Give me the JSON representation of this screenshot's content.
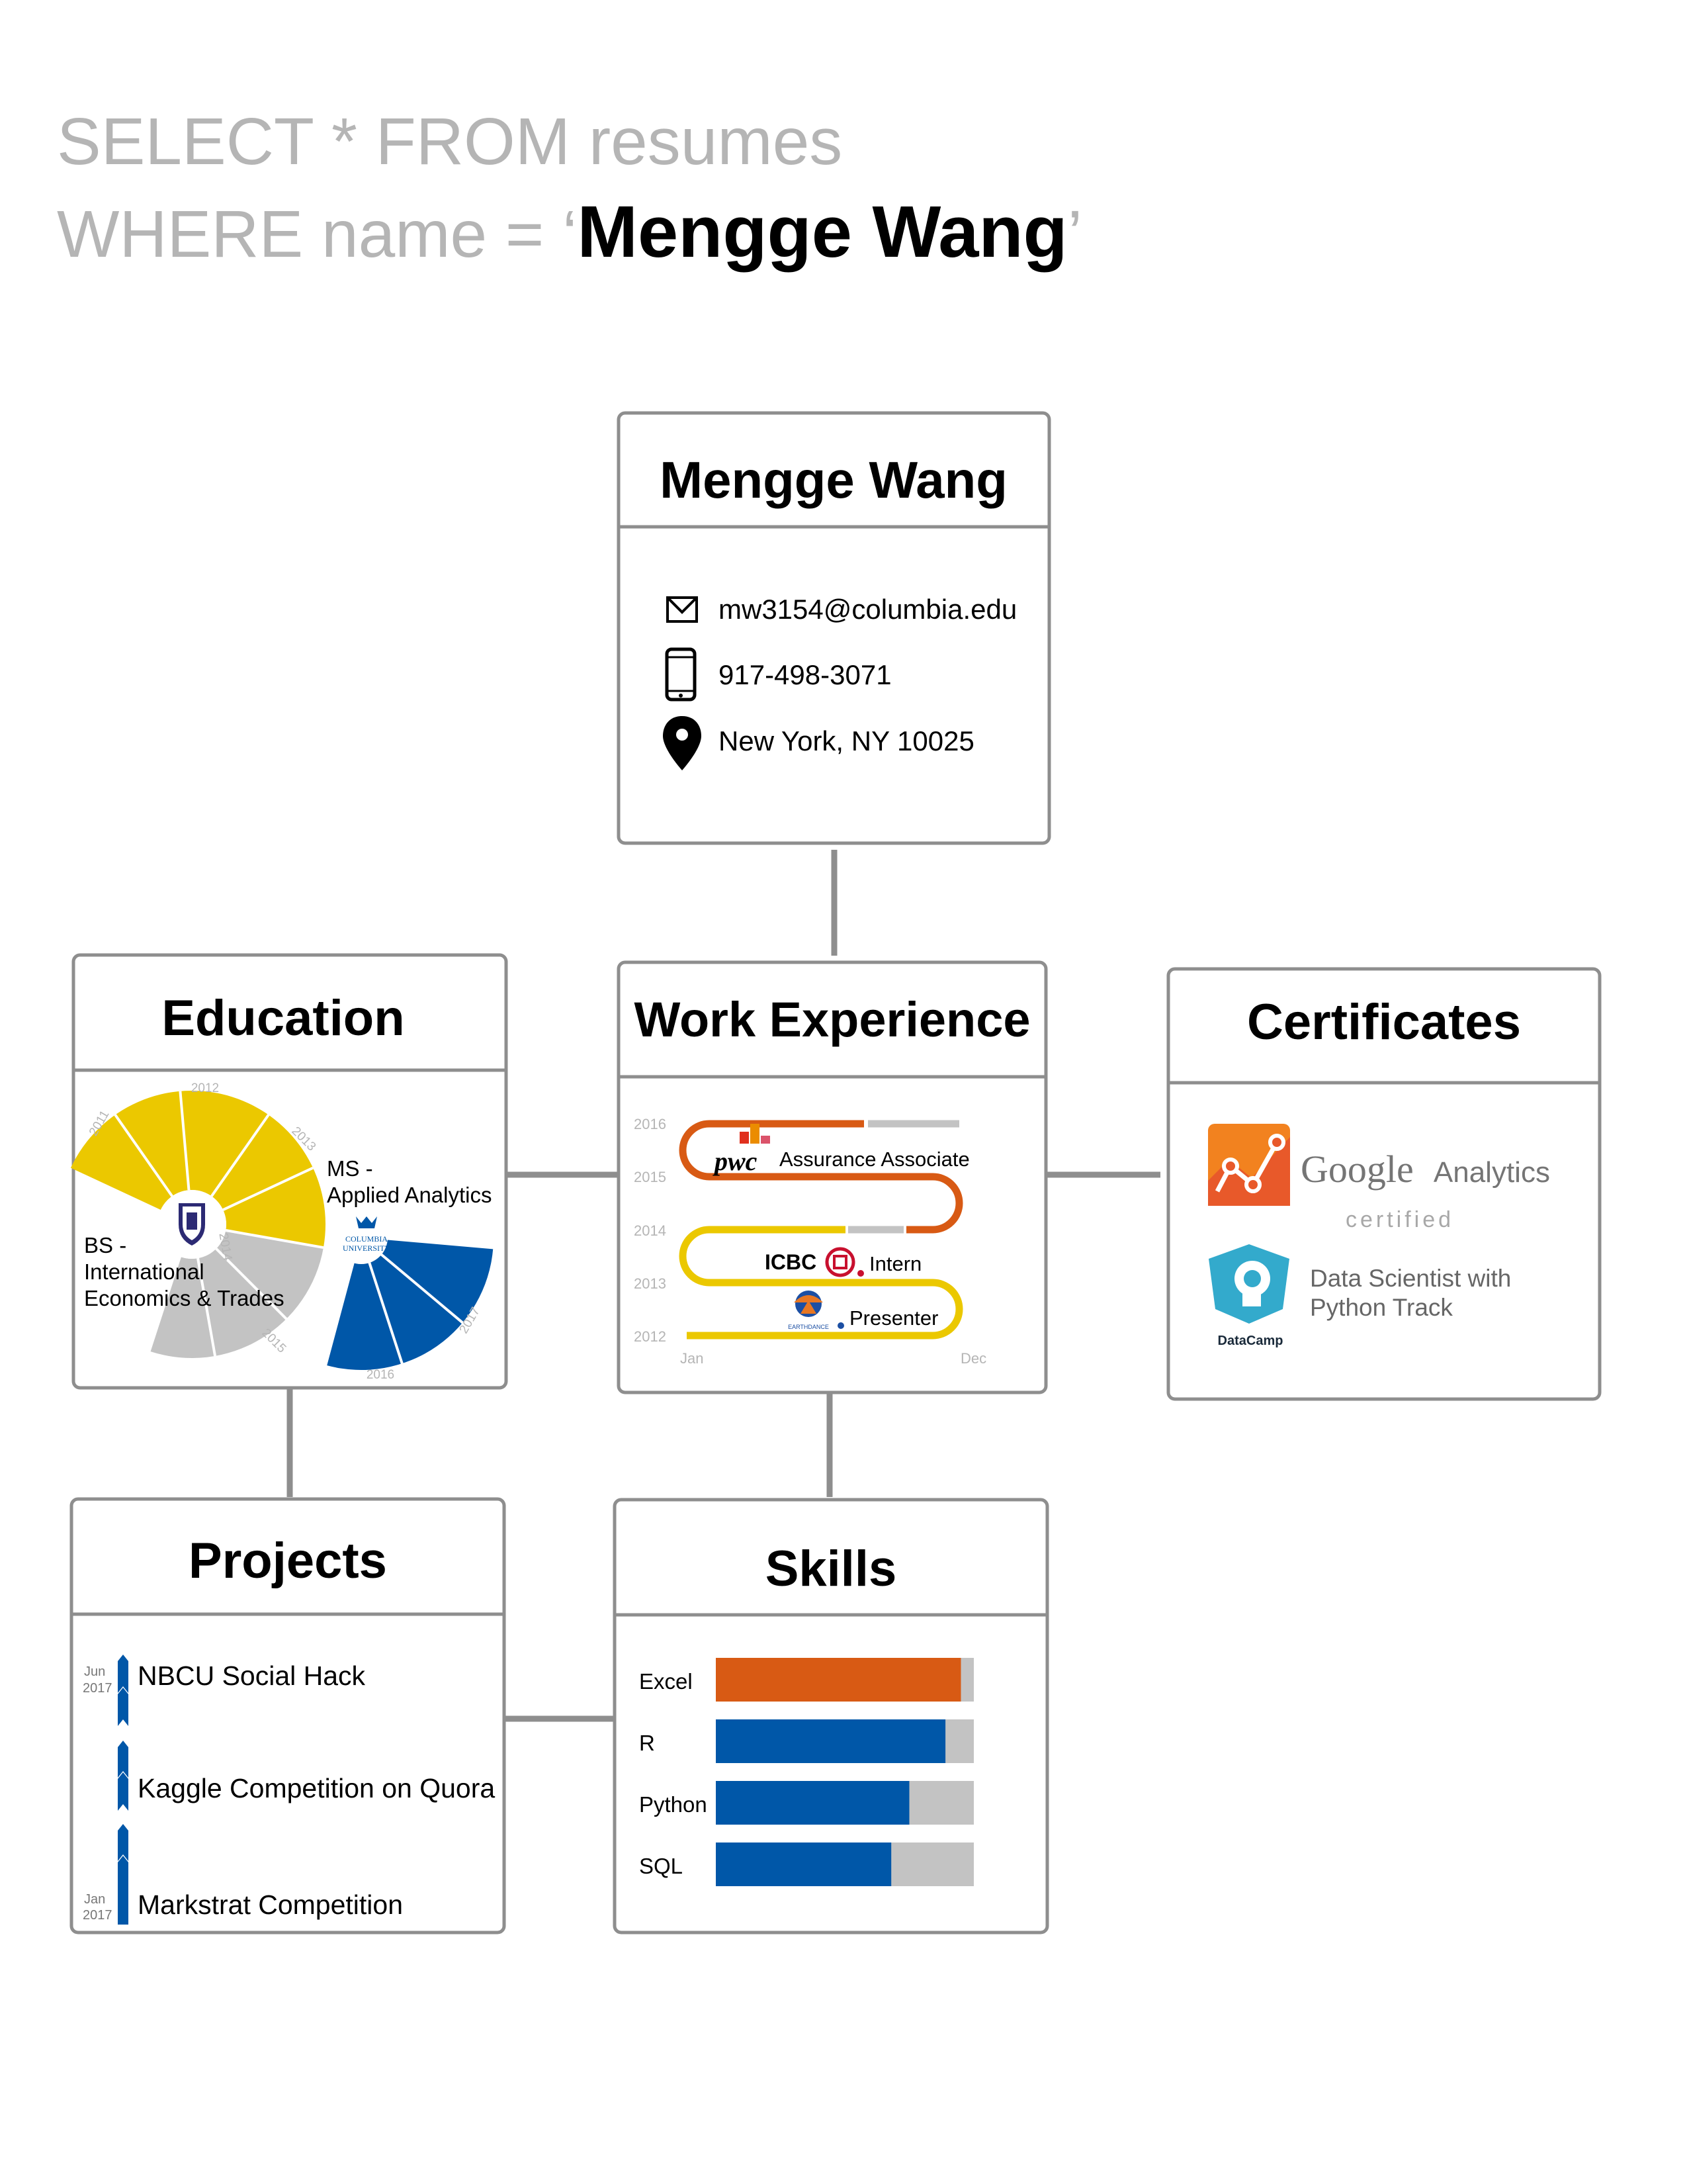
{
  "query": {
    "line1": "SELECT * FROM resumes",
    "line2_prefix": "WHERE name = ‘",
    "line2_name": "Mengge Wang",
    "line2_suffix": "’"
  },
  "contact": {
    "title": "Mengge Wang",
    "email": "mw3154@columbia.edu",
    "phone": "917-498-3071",
    "location": "New York, NY 10025",
    "icons": [
      "mail-icon",
      "phone-icon",
      "location-pin-icon"
    ]
  },
  "education": {
    "title": "Education",
    "bs_label": [
      "BS -",
      "International",
      "Economics & Trades"
    ],
    "ms_label": [
      "MS -",
      "Applied Analytics"
    ],
    "columbia_logo": [
      "COLUMBIA",
      "UNIVERSITY"
    ],
    "years": [
      "2011",
      "2012",
      "2013",
      "2014",
      "2015",
      "2016",
      "2017"
    ],
    "colors": {
      "bs": "#ebc800",
      "gap": "#c3c3c3",
      "ms": "#0057a8"
    }
  },
  "work": {
    "title": "Work Experience",
    "years": [
      "2016",
      "2015",
      "2014",
      "2013",
      "2012"
    ],
    "months": [
      "Jan",
      "Dec"
    ],
    "pwc_logo": "pwc",
    "pwc_role": "Assurance Associate",
    "icbc_logo": "ICBC",
    "icbc_role": "Intern",
    "earthdance_logo": "EARTHDANCE",
    "earthdance_role": "Presenter",
    "colors": {
      "pwc": "#d85a14",
      "icbc": "#ebc800",
      "gap": "#c3c3c3"
    }
  },
  "certificates": {
    "title": "Certificates",
    "google_word": "Google",
    "analytics_word": "Analytics",
    "certified": "certified",
    "datacamp_text": [
      "Data Scientist with",
      "Python Track"
    ],
    "datacamp_logo": "DataCamp",
    "icons": [
      "google-analytics-icon",
      "datacamp-icon"
    ]
  },
  "projects": {
    "title": "Projects",
    "items": [
      "NBCU Social Hack",
      "Kaggle Competition on Quora",
      "Markstrat Competition"
    ],
    "date_top": [
      "Jun",
      "2017"
    ],
    "date_bottom": [
      "Jan",
      "2017"
    ]
  },
  "chart_data": {
    "type": "bar",
    "categories": [
      "Excel",
      "R",
      "Python",
      "SQL"
    ],
    "values": [
      0.95,
      0.89,
      0.75,
      0.68
    ],
    "ylim": [
      0,
      1
    ],
    "colors": [
      "#d85a14",
      "#0057a8",
      "#0057a8",
      "#0057a8"
    ],
    "track_color": "#c3c3c3",
    "title": "Skills"
  },
  "colors": {
    "query_gray": "#b5b5b5",
    "box_border": "#8e8e8e",
    "connector": "#8e8e8e",
    "orange": "#d85a14",
    "blue": "#0057a8",
    "yellow": "#ebc800",
    "gray": "#c3c3c3"
  }
}
